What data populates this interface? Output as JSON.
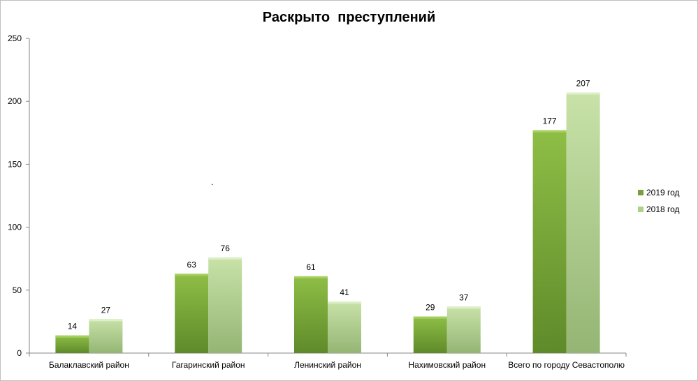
{
  "chart_data": {
    "type": "bar",
    "title": "Раскрыто  преступлений",
    "categories": [
      "Балаклавский район",
      "Гагаринский район",
      "Ленинский район",
      "Нахимовский район",
      "Всего по городу Севастополю"
    ],
    "series": [
      {
        "name": "2019 год",
        "values": [
          14,
          63,
          61,
          29,
          177
        ],
        "color": "#77a03a"
      },
      {
        "name": "2018 год",
        "values": [
          27,
          76,
          41,
          37,
          207
        ],
        "color": "#aed08a"
      }
    ],
    "ylim": [
      0,
      250
    ],
    "yticks": [
      0,
      50,
      100,
      150,
      200,
      250
    ],
    "xlabel": "",
    "ylabel": "",
    "grid": false,
    "legend": "right",
    "annotation": "."
  }
}
